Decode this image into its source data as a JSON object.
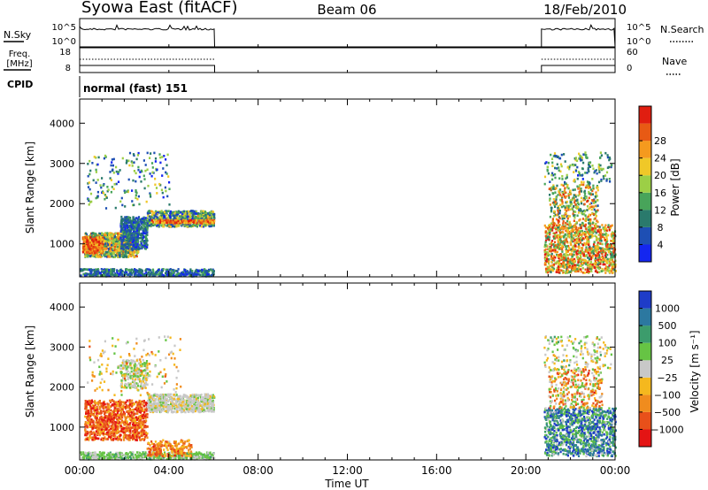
{
  "header": {
    "station": "Syowa East (fitACF)",
    "beam": "Beam 06",
    "date": "18/Feb/2010"
  },
  "panels": {
    "nsky": {
      "label": "N.Sky",
      "ticks": [
        "10^5",
        "10^0"
      ],
      "right_label": "N.Search",
      "right_ticks": [
        "10^5",
        "10^0"
      ]
    },
    "freq": {
      "label_line1": "Freq.",
      "label_line2": "[MHz]",
      "ticks": [
        "18",
        "8"
      ],
      "right_label": "Nave",
      "right_ticks": [
        "60",
        "0"
      ]
    },
    "cpid": {
      "label": "CPID",
      "value": "normal (fast) 151"
    }
  },
  "chart_data": [
    {
      "type": "heatmap",
      "name": "power",
      "ylabel": "Slant Range [km]",
      "ylim": [
        180,
        4600
      ],
      "y_ticks": [
        "1000",
        "2000",
        "3000",
        "4000"
      ],
      "y_tick_values": [
        1000,
        2000,
        3000,
        4000
      ],
      "xlabel": "Time UT",
      "x_ticks": [
        "00:00",
        "04:00",
        "08:00",
        "12:00",
        "16:00",
        "20:00",
        "00:00"
      ],
      "x_tick_hours": [
        0,
        4,
        8,
        12,
        16,
        20,
        24
      ],
      "data_intervals_hours": [
        [
          0,
          6.05
        ],
        [
          20.7,
          24
        ]
      ],
      "colorbar": {
        "label": "Power [dB]",
        "ticks": [
          "4",
          "8",
          "12",
          "16",
          "20",
          "24",
          "28"
        ],
        "colors": [
          "#1426f0",
          "#1e4fb4",
          "#2a7a6c",
          "#48a45a",
          "#9ccf46",
          "#f0c828",
          "#f59a1e",
          "#e85a14",
          "#e01e10"
        ]
      }
    },
    {
      "type": "heatmap",
      "name": "velocity",
      "ylabel": "Slant Range [km]",
      "ylim": [
        180,
        4600
      ],
      "y_ticks": [
        "1000",
        "2000",
        "3000",
        "4000"
      ],
      "y_tick_values": [
        1000,
        2000,
        3000,
        4000
      ],
      "xlabel": "Time UT",
      "x_ticks": [
        "00:00",
        "04:00",
        "08:00",
        "12:00",
        "16:00",
        "20:00",
        "00:00"
      ],
      "x_tick_hours": [
        0,
        4,
        8,
        12,
        16,
        20,
        24
      ],
      "data_intervals_hours": [
        [
          0,
          6.05
        ],
        [
          20.7,
          24
        ]
      ],
      "colorbar": {
        "label": "Velocity [m s⁻¹]",
        "ticks": [
          "1000",
          "500",
          "100",
          "25",
          "−25",
          "−100",
          "−500",
          "−1000"
        ],
        "colors": [
          "#1e3cc8",
          "#2c78a0",
          "#3c9c6c",
          "#66c444",
          "#c8c8c8",
          "#f5b81e",
          "#f08c1e",
          "#e8501a",
          "#e41414"
        ]
      }
    },
    {
      "type": "line",
      "name": "nsky",
      "note": "noise level traces during data intervals",
      "data_intervals_hours": [
        [
          0,
          6.05
        ],
        [
          20.7,
          24
        ]
      ]
    }
  ]
}
